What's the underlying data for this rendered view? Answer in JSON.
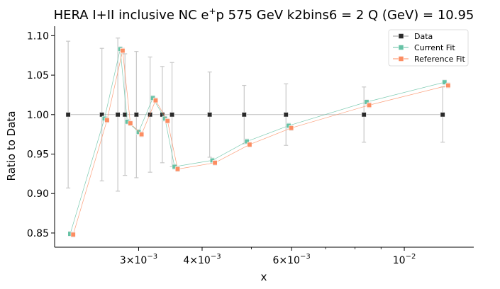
{
  "chart_data": {
    "type": "scatter",
    "title": "HERA I+II inclusive NC e",
    "title_sup": "+",
    "title_rest": "p 575 GeV k2bins6 = 2 Q (GeV) = 10.95",
    "xlabel": "x",
    "ylabel": "Ratio to Data",
    "x_scale": "log",
    "xlim": [
      0.00205,
      0.0137
    ],
    "ylim": [
      0.832,
      1.112
    ],
    "yticks": [
      0.85,
      0.9,
      0.95,
      1.0,
      1.05,
      1.1
    ],
    "ytick_labels": [
      "0.85",
      "0.90",
      "0.95",
      "1.00",
      "1.05",
      "1.10"
    ],
    "xticks_major": [
      {
        "value": 0.003,
        "mant": "3",
        "times": "×",
        "base": "10",
        "exp": "−3"
      },
      {
        "value": 0.004,
        "mant": "4",
        "times": "×",
        "base": "10",
        "exp": "−3"
      },
      {
        "value": 0.006,
        "mant": "6",
        "times": "×",
        "base": "10",
        "exp": "−3"
      },
      {
        "value": 0.01,
        "mant": "",
        "times": "",
        "base": "10",
        "exp": "−2"
      }
    ],
    "xticks_minor": [
      0.005,
      0.007,
      0.008,
      0.009
    ],
    "grid": false,
    "legend_position": "top-right",
    "series": [
      {
        "name": "Data",
        "color": "#2b2b2b",
        "x": [
          0.00218,
          0.00254,
          0.00273,
          0.00282,
          0.00297,
          0.00316,
          0.00334,
          0.00349,
          0.00414,
          0.00484,
          0.00585,
          0.00833,
          0.0119
        ],
        "y": [
          1.0,
          1.0,
          1.0,
          1.0,
          1.0,
          1.0,
          1.0,
          1.0,
          1.0,
          1.0,
          1.0,
          1.0,
          1.0
        ],
        "yerr": [
          0.093,
          0.084,
          0.097,
          0.077,
          0.08,
          0.073,
          0.061,
          0.066,
          0.054,
          0.037,
          0.039,
          0.035,
          0.035
        ]
      },
      {
        "name": "Current Fit",
        "color": "#66c2a5",
        "x": [
          0.0022,
          0.00257,
          0.00276,
          0.00285,
          0.003,
          0.0032,
          0.00338,
          0.00353,
          0.00419,
          0.0049,
          0.00592,
          0.00843,
          0.012
        ],
        "y": [
          0.849,
          0.995,
          1.083,
          0.991,
          0.978,
          1.021,
          0.995,
          0.934,
          0.942,
          0.966,
          0.986,
          1.016,
          1.041
        ],
        "yerr": [
          0.003,
          0.003,
          0.003,
          0.003,
          0.003,
          0.003,
          0.003,
          0.003,
          0.003,
          0.003,
          0.003,
          0.003,
          0.003
        ]
      },
      {
        "name": "Reference Fit",
        "color": "#fc8d62",
        "x": [
          0.00223,
          0.0026,
          0.00279,
          0.00289,
          0.00304,
          0.00324,
          0.00342,
          0.00358,
          0.00424,
          0.00496,
          0.00599,
          0.00853,
          0.0122
        ],
        "y": [
          0.848,
          0.993,
          1.081,
          0.989,
          0.975,
          1.018,
          0.992,
          0.931,
          0.939,
          0.962,
          0.983,
          1.012,
          1.037
        ],
        "yerr": [
          0.003,
          0.003,
          0.003,
          0.003,
          0.003,
          0.003,
          0.003,
          0.003,
          0.003,
          0.003,
          0.003,
          0.003,
          0.003
        ]
      }
    ]
  }
}
